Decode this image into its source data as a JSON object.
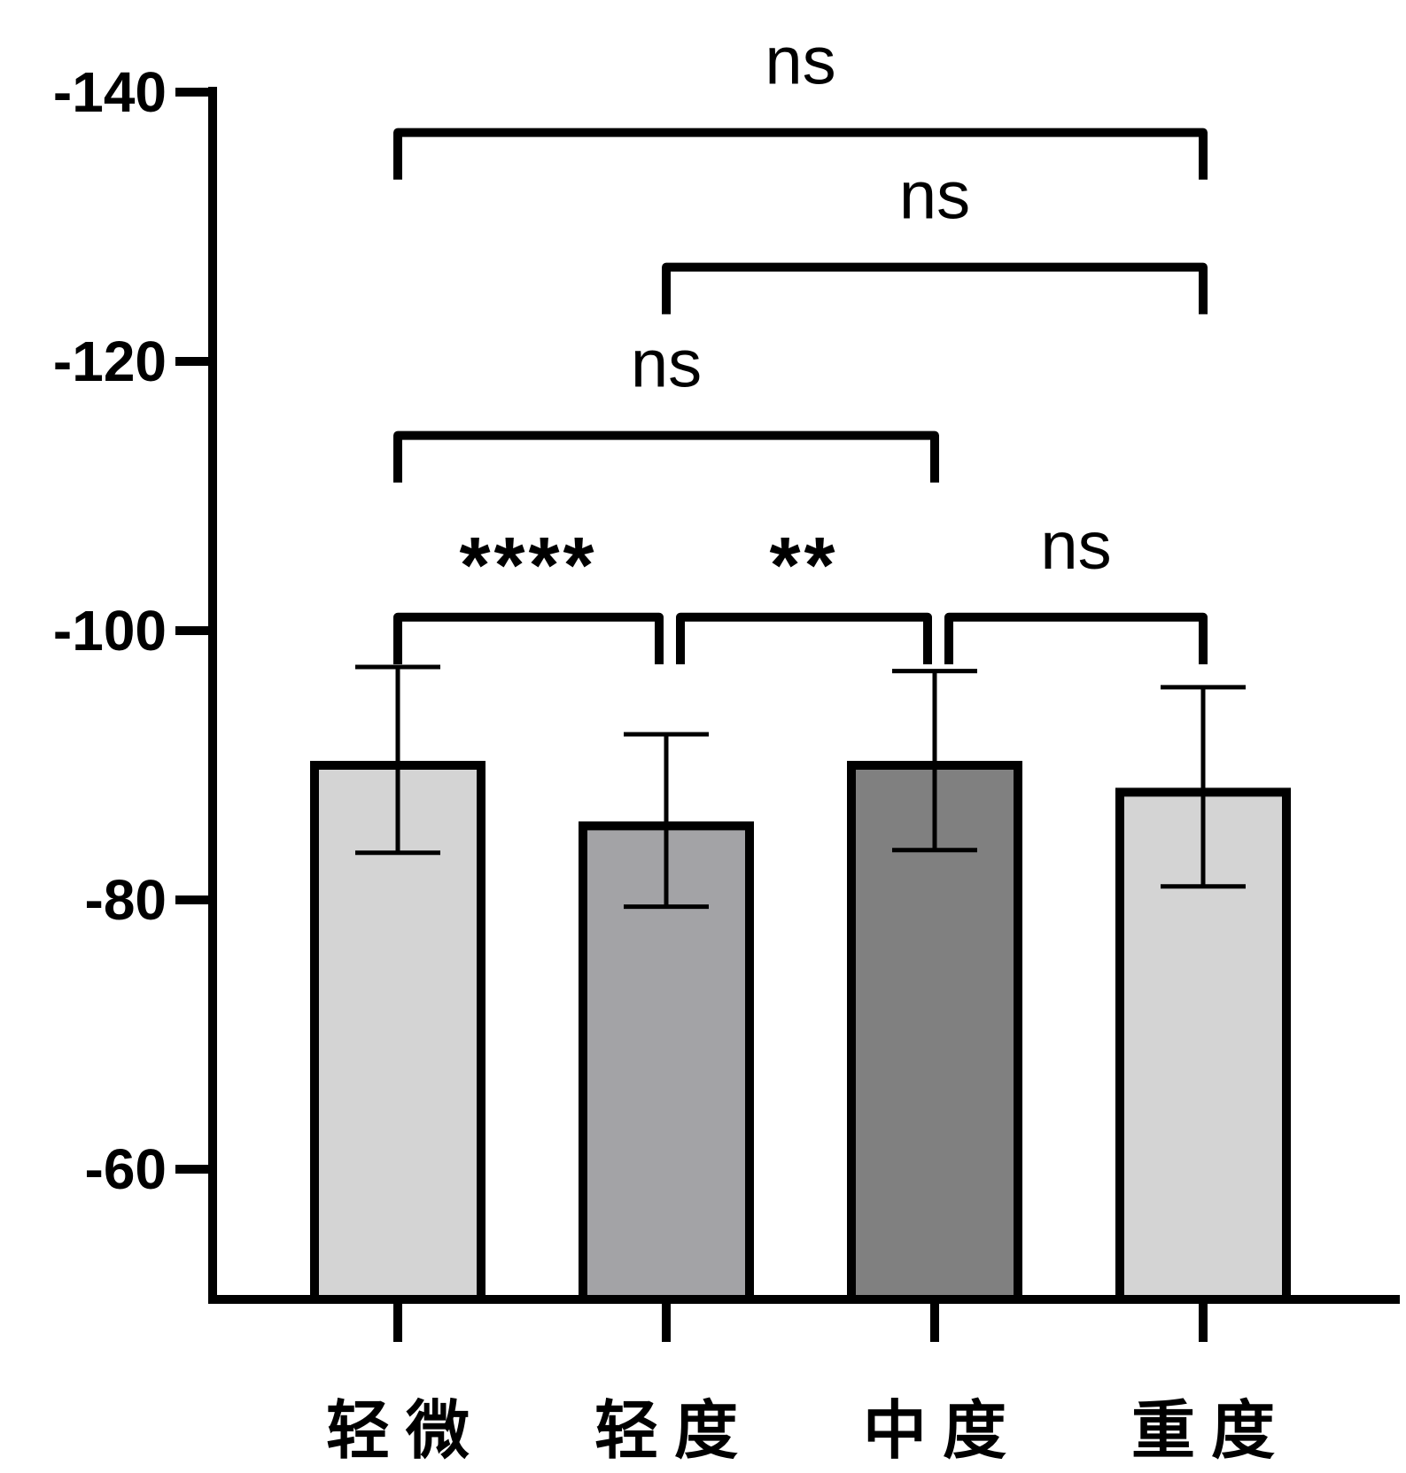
{
  "chart_data": {
    "type": "bar",
    "title": "",
    "xlabel": "",
    "ylabel": "",
    "categories": [
      "轻微",
      "轻度",
      "中度",
      "重度"
    ],
    "values": [
      -90,
      -85.5,
      -90,
      -88
    ],
    "error": [
      [
        -83.5,
        -97.3
      ],
      [
        -79.5,
        -92.3
      ],
      [
        -83.7,
        -97
      ],
      [
        -81,
        -95.8
      ]
    ],
    "bar_colors": [
      "#d4d4d4",
      "#a3a3a6",
      "#808080",
      "#d4d4d4"
    ],
    "ylim": [
      -50,
      -140
    ],
    "y_axis_inverted": true,
    "y_ticks": [
      -60,
      -80,
      -100,
      -120,
      -140
    ],
    "y_tick_labels": [
      "-60",
      "-80",
      "-100",
      "-120",
      "-140"
    ],
    "grid": false,
    "legend": "none",
    "significance": [
      {
        "from": 0,
        "to": 1,
        "label": "****",
        "bracket_y": -101,
        "leg_y": -97.5
      },
      {
        "from": 1,
        "to": 2,
        "label": "**",
        "bracket_y": -101,
        "leg_y": -97.5
      },
      {
        "from": 2,
        "to": 3,
        "label": "ns",
        "bracket_y": -101,
        "leg_y": -97.5
      },
      {
        "from": 0,
        "to": 2,
        "label": "ns",
        "bracket_y": -114.5,
        "leg_y": -111
      },
      {
        "from": 1,
        "to": 3,
        "label": "ns",
        "bracket_y": -127,
        "leg_y": -123.5
      },
      {
        "from": 0,
        "to": 3,
        "label": "ns",
        "bracket_y": -137,
        "leg_y": -133.5
      }
    ]
  }
}
